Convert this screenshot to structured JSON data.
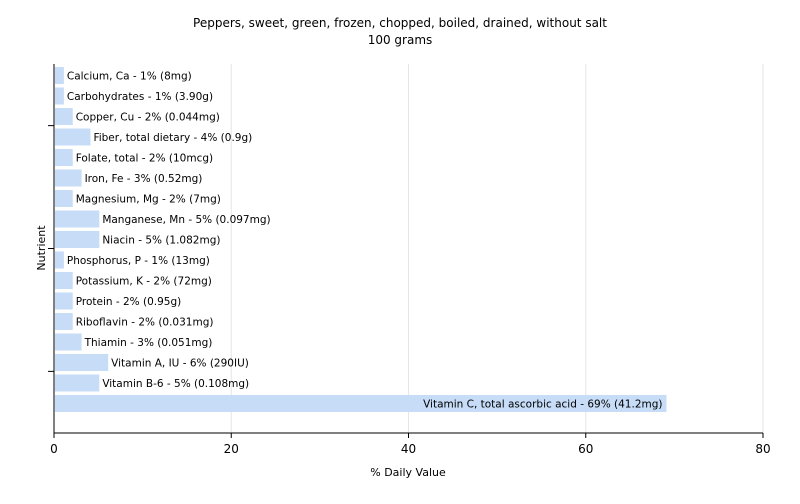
{
  "chart_data": {
    "type": "bar",
    "orientation": "horizontal",
    "title": "Peppers, sweet, green, frozen, chopped, boiled, drained, without salt",
    "subtitle": "100 grams",
    "xlabel": "% Daily Value",
    "ylabel": "Nutrient",
    "xlim": [
      0,
      80
    ],
    "xticks": [
      "0",
      "20",
      "40",
      "60",
      "80"
    ],
    "grid": true,
    "bar_color": "#c6dcf7",
    "grid_color": "#e6e6e6",
    "axis_color": "#000000",
    "categories": [
      "Calcium, Ca - 1% (8mg)",
      "Carbohydrates - 1% (3.90g)",
      "Copper, Cu - 2% (0.044mg)",
      "Fiber, total dietary - 4% (0.9g)",
      "Folate, total - 2% (10mcg)",
      "Iron, Fe - 3% (0.52mg)",
      "Magnesium, Mg - 2% (7mg)",
      "Manganese, Mn - 5% (0.097mg)",
      "Niacin - 5% (1.082mg)",
      "Phosphorus, P - 1% (13mg)",
      "Potassium, K - 2% (72mg)",
      "Protein - 2% (0.95g)",
      "Riboflavin - 2% (0.031mg)",
      "Thiamin - 3% (0.051mg)",
      "Vitamin A, IU - 6% (290IU)",
      "Vitamin B-6 - 5% (0.108mg)",
      "Vitamin C, total ascorbic acid - 69% (41.2mg)"
    ],
    "values": [
      1,
      1,
      2,
      4,
      2,
      3,
      2,
      5,
      5,
      1,
      2,
      2,
      2,
      3,
      6,
      5,
      69
    ]
  }
}
